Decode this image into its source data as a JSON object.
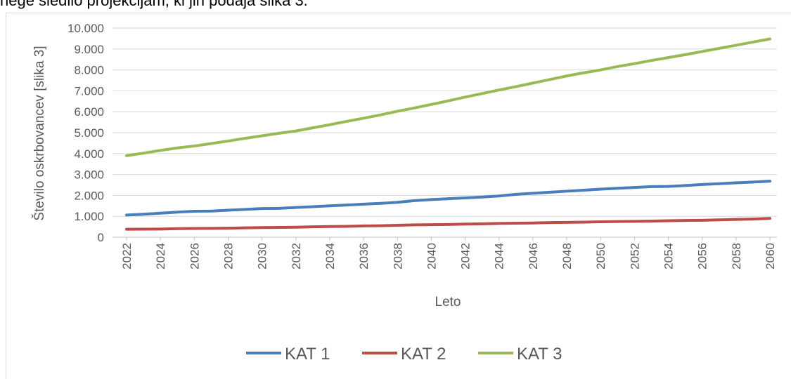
{
  "page_text": "nege sledilo projekcijam, ki jih podaja slika 3.",
  "chart_data": {
    "type": "line",
    "xlabel": "Leto",
    "ylabel": "Število oskrbovancev [slika 3]",
    "x": [
      2022,
      2023,
      2024,
      2025,
      2026,
      2027,
      2028,
      2029,
      2030,
      2031,
      2032,
      2033,
      2034,
      2035,
      2036,
      2037,
      2038,
      2039,
      2040,
      2041,
      2042,
      2043,
      2044,
      2045,
      2046,
      2047,
      2048,
      2049,
      2050,
      2051,
      2052,
      2053,
      2054,
      2055,
      2056,
      2057,
      2058,
      2059,
      2060
    ],
    "xlim": [
      2022,
      2060
    ],
    "xticks": [
      2022,
      2024,
      2026,
      2028,
      2030,
      2032,
      2034,
      2036,
      2038,
      2040,
      2042,
      2044,
      2046,
      2048,
      2050,
      2052,
      2054,
      2056,
      2058,
      2060
    ],
    "ylim": [
      0,
      10000
    ],
    "yticks": [
      0,
      {
        "value": 1000,
        "label": "1.000"
      },
      {
        "value": 2000,
        "label": "2.000"
      },
      {
        "value": 3000,
        "label": "3.000"
      },
      {
        "value": 4000,
        "label": "4.000"
      },
      {
        "value": 5000,
        "label": "5.000"
      },
      {
        "value": 6000,
        "label": "6.000"
      },
      {
        "value": 7000,
        "label": "7.000"
      },
      {
        "value": 8000,
        "label": "8.000"
      },
      {
        "value": 9000,
        "label": "9.000"
      },
      {
        "value": 10000,
        "label": "10.000"
      }
    ],
    "grid": true,
    "legend": "bottom",
    "series": [
      {
        "name": "KAT 1",
        "color": "#4a7ebb",
        "values": [
          1060,
          1100,
          1150,
          1200,
          1240,
          1250,
          1290,
          1330,
          1370,
          1380,
          1420,
          1460,
          1500,
          1540,
          1580,
          1620,
          1670,
          1750,
          1800,
          1840,
          1880,
          1920,
          1970,
          2050,
          2100,
          2150,
          2200,
          2250,
          2300,
          2340,
          2380,
          2420,
          2430,
          2470,
          2520,
          2560,
          2600,
          2640,
          2680
        ]
      },
      {
        "name": "KAT 2",
        "color": "#be4b48",
        "values": [
          380,
          385,
          390,
          410,
          420,
          425,
          430,
          450,
          460,
          470,
          480,
          500,
          510,
          520,
          540,
          550,
          570,
          590,
          600,
          610,
          630,
          640,
          660,
          670,
          680,
          700,
          710,
          720,
          740,
          750,
          760,
          770,
          790,
          800,
          810,
          830,
          850,
          870,
          900
        ]
      },
      {
        "name": "KAT 3",
        "color": "#98b954",
        "values": [
          3900,
          4020,
          4150,
          4270,
          4360,
          4480,
          4600,
          4730,
          4850,
          4970,
          5080,
          5230,
          5380,
          5540,
          5690,
          5850,
          6020,
          6180,
          6350,
          6520,
          6700,
          6870,
          7040,
          7200,
          7370,
          7540,
          7710,
          7860,
          8000,
          8160,
          8300,
          8450,
          8590,
          8730,
          8880,
          9030,
          9180,
          9330,
          9480
        ]
      }
    ]
  }
}
